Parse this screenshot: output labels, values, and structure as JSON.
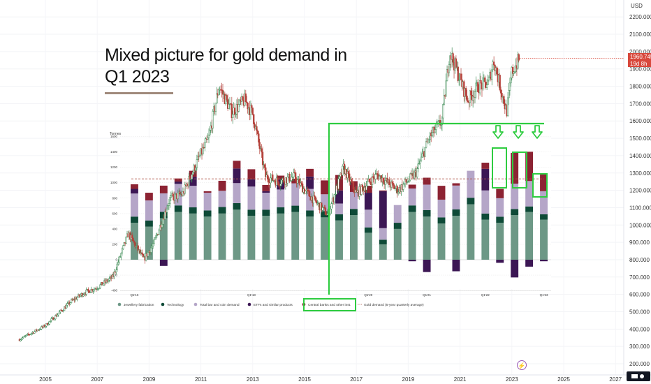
{
  "header": {
    "title": "Mixed picture for gold demand in Q1 2023"
  },
  "price_axis": {
    "currency": "USD",
    "ticks": [
      200,
      300,
      400,
      500,
      600,
      700,
      800,
      900,
      1000,
      1100,
      1200,
      1300,
      1400,
      1500,
      1600,
      1700,
      1800,
      1900,
      2000,
      2100,
      2200
    ],
    "current_price": "1960.745",
    "countdown": "19d 8h"
  },
  "time_axis": {
    "years": [
      2005,
      2007,
      2009,
      2011,
      2013,
      2015,
      2017,
      2019,
      2021,
      2023,
      2025,
      2027
    ]
  },
  "inset": {
    "unit_label": "Tonnes",
    "y_ticks": [
      -400,
      -200,
      0,
      200,
      400,
      600,
      800,
      1000,
      1200,
      1400,
      1600
    ],
    "quarter_labels": [
      "Q1'16",
      "Q1'18",
      "Q1'20",
      "Q1'21",
      "Q1'22",
      "Q1'23"
    ],
    "legend": [
      {
        "label": "Jewellery fabrication",
        "color": "#6d9886"
      },
      {
        "label": "Technology",
        "color": "#0e4a37"
      },
      {
        "label": "Total bar and coin demand",
        "color": "#b5a6c8"
      },
      {
        "label": "ETFs and similar products",
        "color": "#3c1754"
      },
      {
        "label": "Central banks and other inst.",
        "color": "#8c2333"
      },
      {
        "label": "Gold demand (5-year quarterly average)",
        "color": "#b0584a"
      }
    ]
  },
  "chart_data": [
    {
      "type": "line",
      "title": "",
      "xlabel": "",
      "ylabel": "",
      "note": "XAUUSD candlestick price history",
      "x": [
        2004.0,
        2005.0,
        2006.0,
        2006.5,
        2007.0,
        2007.6,
        2008.2,
        2008.8,
        2009.2,
        2009.8,
        2010.3,
        2010.9,
        2011.3,
        2011.7,
        2012.2,
        2012.7,
        2013.0,
        2013.5,
        2014.0,
        2014.6,
        2015.0,
        2015.9,
        2016.5,
        2017.0,
        2017.8,
        2018.6,
        2019.3,
        2019.8,
        2020.3,
        2020.6,
        2020.9,
        2021.3,
        2021.7,
        2022.1,
        2022.3,
        2022.8,
        2023.0,
        2023.3
      ],
      "y": [
        340,
        420,
        560,
        610,
        640,
        700,
        950,
        800,
        900,
        1150,
        1180,
        1380,
        1500,
        1800,
        1650,
        1720,
        1640,
        1280,
        1250,
        1280,
        1200,
        1060,
        1330,
        1180,
        1290,
        1200,
        1300,
        1500,
        1600,
        2000,
        1880,
        1720,
        1800,
        1820,
        1950,
        1650,
        1880,
        1960
      ]
    },
    {
      "type": "bar",
      "title": "",
      "ylabel": "Tonnes",
      "ylim": [
        -400,
        1600
      ],
      "stacked": true,
      "categories": [
        "Q1'16",
        "Q2'16",
        "Q3'16",
        "Q4'16",
        "Q1'17",
        "Q2'17",
        "Q3'17",
        "Q4'17",
        "Q1'18",
        "Q2'18",
        "Q3'18",
        "Q4'18",
        "Q1'19",
        "Q2'19",
        "Q3'19",
        "Q4'19",
        "Q1'20",
        "Q2'20",
        "Q3'20",
        "Q4'20",
        "Q1'21",
        "Q2'21",
        "Q3'21",
        "Q4'21",
        "Q1'22",
        "Q2'22",
        "Q3'22",
        "Q4'22",
        "Q1'23"
      ],
      "series": [
        {
          "name": "Jewellery fabrication",
          "values": [
            480,
            430,
            540,
            620,
            600,
            560,
            600,
            650,
            570,
            570,
            600,
            620,
            560,
            550,
            510,
            580,
            350,
            200,
            400,
            620,
            560,
            470,
            570,
            720,
            520,
            480,
            580,
            620,
            520
          ]
        },
        {
          "name": "Technology",
          "values": [
            80,
            80,
            82,
            85,
            80,
            80,
            85,
            85,
            80,
            80,
            82,
            82,
            80,
            80,
            80,
            80,
            70,
            60,
            80,
            85,
            85,
            80,
            83,
            85,
            80,
            79,
            78,
            72,
            70
          ]
        },
        {
          "name": "Total bar and coin demand",
          "values": [
            300,
            260,
            240,
            280,
            280,
            230,
            210,
            260,
            300,
            220,
            230,
            290,
            280,
            220,
            140,
            220,
            230,
            150,
            230,
            220,
            330,
            230,
            310,
            350,
            300,
            240,
            330,
            330,
            300
          ]
        },
        {
          "name": "ETFs and similar products",
          "values": [
            60,
            0,
            -80,
            30,
            115,
            0,
            0,
            190,
            95,
            20,
            130,
            0,
            160,
            0,
            170,
            0,
            220,
            480,
            0,
            -20,
            -160,
            0,
            -150,
            0,
            280,
            -40,
            -230,
            -90,
            -20
          ]
        },
        {
          "name": "Central banks and other inst.",
          "values": [
            60,
            100,
            100,
            40,
            80,
            20,
            130,
            100,
            130,
            80,
            50,
            60,
            100,
            180,
            200,
            140,
            90,
            10,
            0,
            50,
            90,
            180,
            30,
            0,
            80,
            120,
            400,
            380,
            230
          ]
        }
      ],
      "reference_line": {
        "name": "Gold demand (5-year quarterly average)",
        "value": 1050
      }
    }
  ]
}
